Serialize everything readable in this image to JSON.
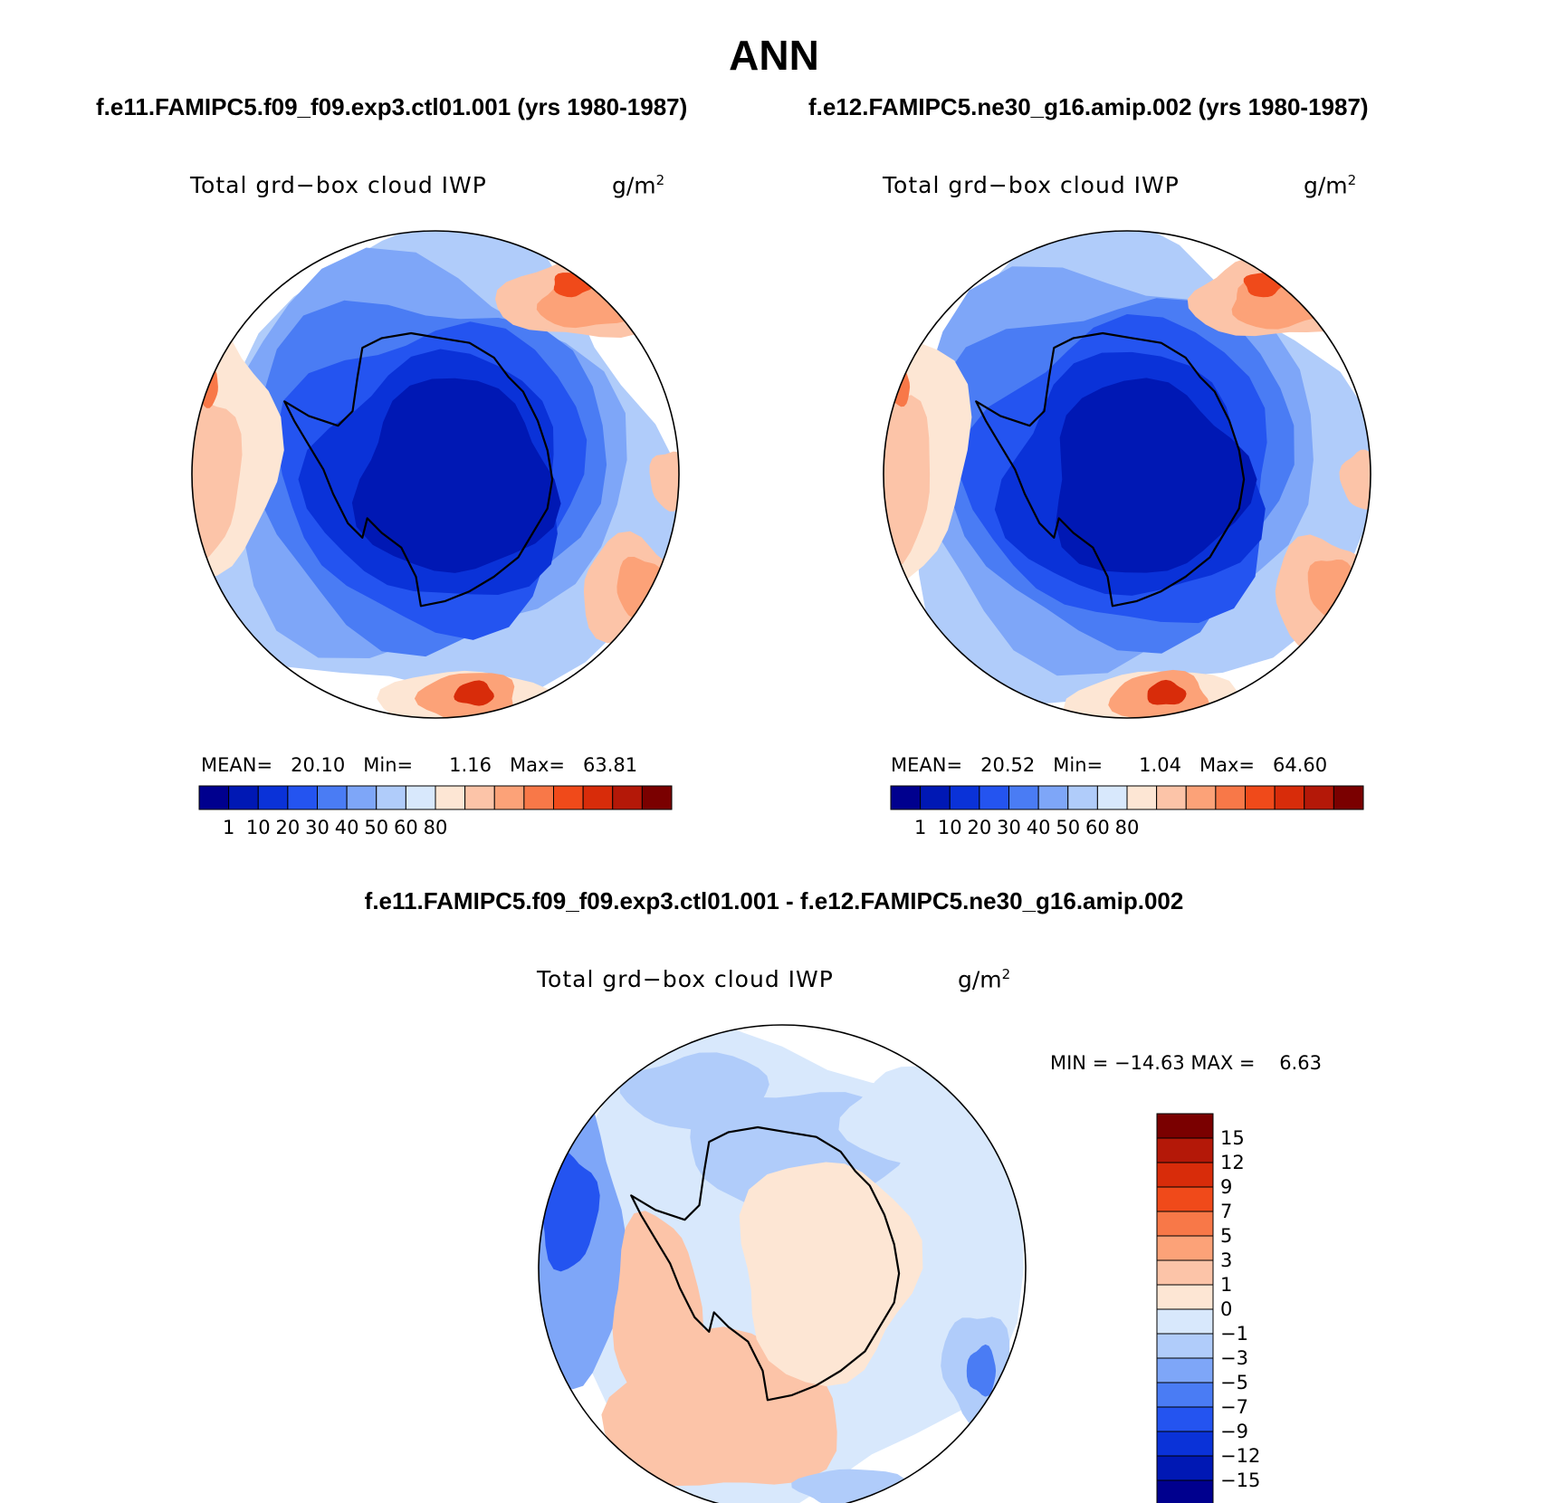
{
  "figure": {
    "title": "ANN",
    "case_1": "f.e11.FAMIPC5.f09_f09.exp3.ctl01.001 (yrs 1980-1987)",
    "case_2": "f.e12.FAMIPC5.ne30_g16.amip.002 (yrs 1980-1987)",
    "diff_title": "f.e11.FAMIPC5.f09_f09.exp3.ctl01.001 - f.e12.FAMIPC5.ne30_g16.amip.002"
  },
  "chart_data": [
    {
      "type": "heatmap",
      "projection": "south-polar-stereographic",
      "variable": "Total grd−box cloud IWP",
      "units": "g/m",
      "units_exponent": "2",
      "mean_label": "MEAN=",
      "mean": "20.10",
      "min_label": "Min=",
      "min": "1.16",
      "max_label": "Max=",
      "max": "63.81",
      "colorbar_levels": [
        "1",
        "10",
        "20",
        "30",
        "40",
        "50",
        "60",
        "80"
      ],
      "colors": [
        "#00008e",
        "#0018b4",
        "#0a32d8",
        "#2454f0",
        "#4a7cf4",
        "#7ea6f8",
        "#b0ccfa",
        "#d8e8fc",
        "#fde6d4",
        "#fcc4a8",
        "#fca278",
        "#f87848",
        "#f04a1a",
        "#d82c0a",
        "#b41808",
        "#7a0000"
      ]
    },
    {
      "type": "heatmap",
      "projection": "south-polar-stereographic",
      "variable": "Total grd−box cloud IWP",
      "units": "g/m",
      "units_exponent": "2",
      "mean_label": "MEAN=",
      "mean": "20.52",
      "min_label": "Min=",
      "min": "1.04",
      "max_label": "Max=",
      "max": "64.60",
      "colorbar_levels": [
        "1",
        "10",
        "20",
        "30",
        "40",
        "50",
        "60",
        "80"
      ],
      "colors": [
        "#00008e",
        "#0018b4",
        "#0a32d8",
        "#2454f0",
        "#4a7cf4",
        "#7ea6f8",
        "#b0ccfa",
        "#d8e8fc",
        "#fde6d4",
        "#fcc4a8",
        "#fca278",
        "#f87848",
        "#f04a1a",
        "#d82c0a",
        "#b41808",
        "#7a0000"
      ]
    },
    {
      "type": "heatmap",
      "projection": "south-polar-stereographic",
      "variable": "Total grd−box cloud IWP",
      "units": "g/m",
      "units_exponent": "2",
      "stats_text": "MIN = −14.63 MAX =    6.63",
      "colorbar_levels": [
        "15",
        "12",
        "9",
        "7",
        "5",
        "3",
        "1",
        "0",
        "−1",
        "−3",
        "−5",
        "−7",
        "−9",
        "−12",
        "−15"
      ],
      "colors": [
        "#7a0000",
        "#b41808",
        "#d82c0a",
        "#f04a1a",
        "#f87848",
        "#fca278",
        "#fcc4a8",
        "#fde6d4",
        "#d8e8fc",
        "#b0ccfa",
        "#7ea6f8",
        "#4a7cf4",
        "#2454f0",
        "#0a32d8",
        "#0018b4",
        "#00008e"
      ]
    }
  ]
}
